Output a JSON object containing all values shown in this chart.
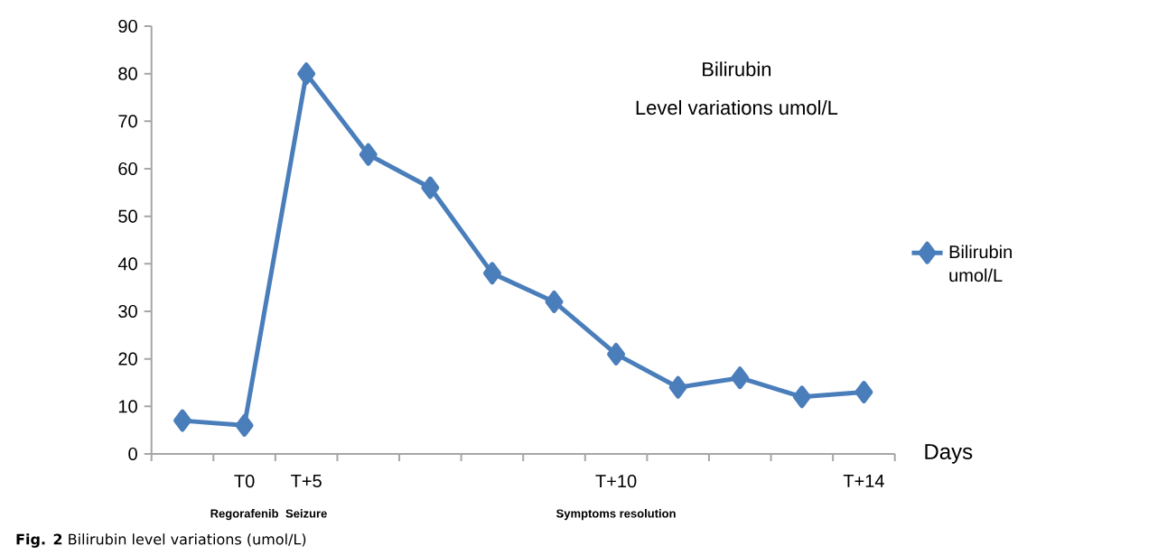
{
  "chart_data": {
    "type": "line",
    "title": "Bilirubin",
    "subtitle": "Level variations umol/L",
    "xlabel": "Days",
    "categories": [
      null,
      "T0",
      "T+5",
      null,
      null,
      null,
      null,
      "T+10",
      null,
      null,
      null,
      "T+14"
    ],
    "series": [
      {
        "name": "Bilirubin umol/L",
        "color": "#4a7ebb",
        "values": [
          7,
          6,
          80,
          63,
          56,
          38,
          32,
          21,
          14,
          16,
          12,
          13
        ]
      }
    ],
    "ylim": [
      0,
      90
    ],
    "yticks": [
      0,
      10,
      20,
      30,
      40,
      50,
      60,
      70,
      80,
      90
    ],
    "marker": "diamond",
    "line_style": "solid",
    "legend": "right",
    "annotations": [
      "Regorafenib",
      "Seizure",
      "Symptoms resolution",
      "**Fig. 2** Bilirubin level variations (umol/L)"
    ]
  }
}
